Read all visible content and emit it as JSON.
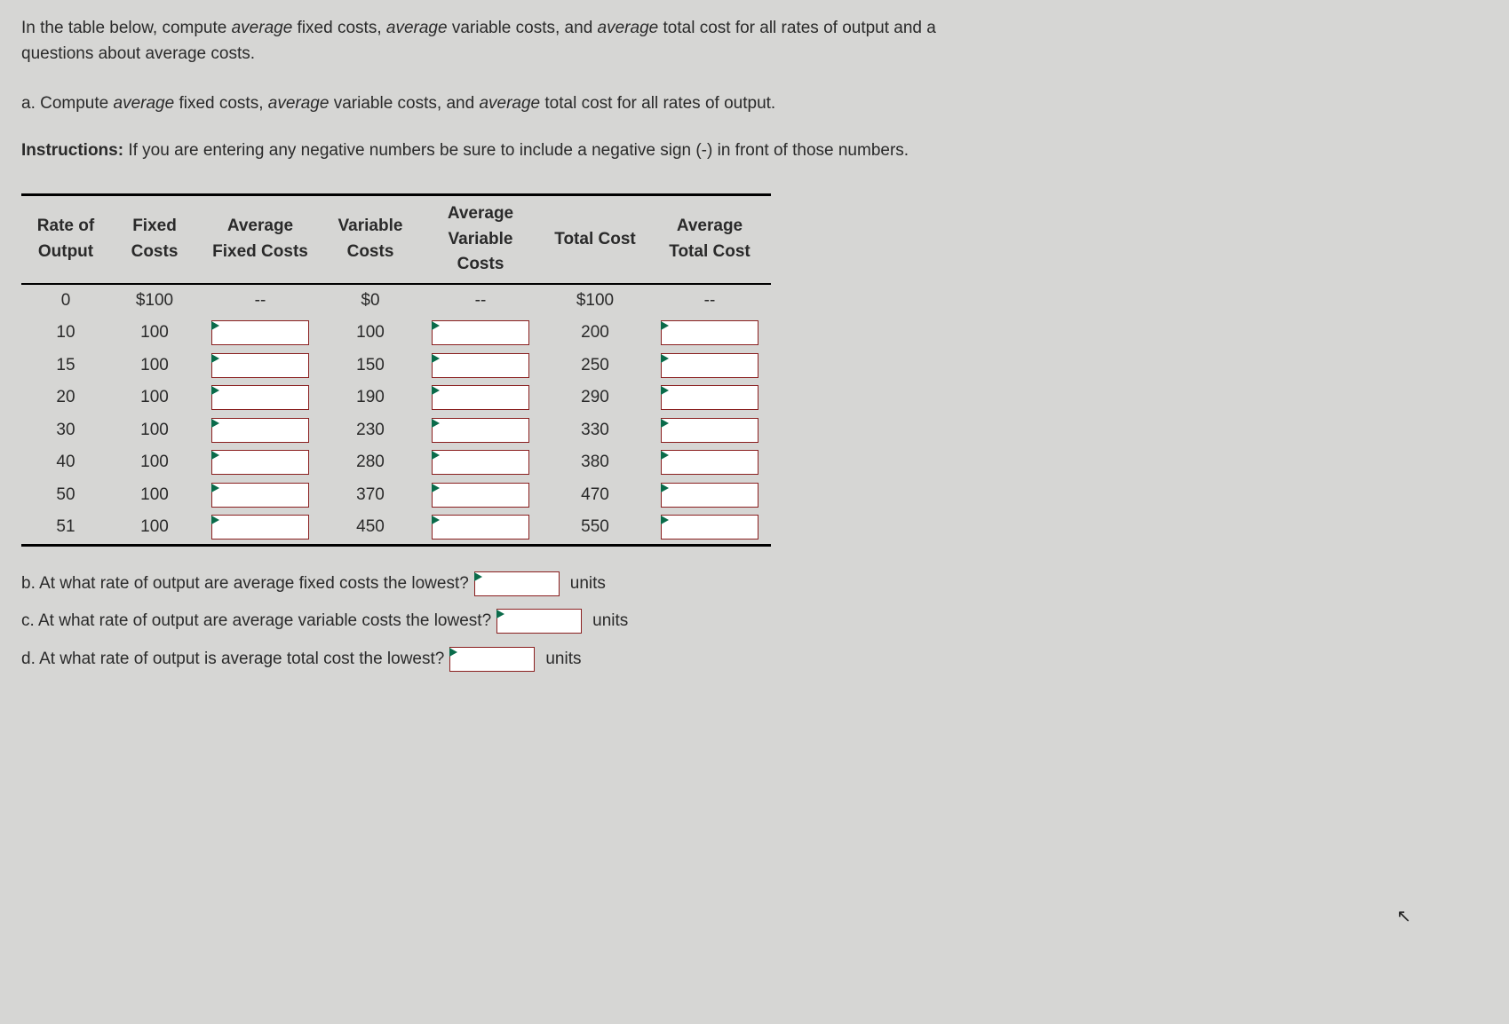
{
  "intro": "In the table below, compute average fixed costs, average variable costs, and average total cost for all rates of output and a questions about average costs.",
  "part_a_prefix": "a. Compute ",
  "part_a_mid1": "average",
  "part_a_mid2": " fixed costs, ",
  "part_a_mid3": "average",
  "part_a_mid4": " variable costs, and ",
  "part_a_mid5": "average",
  "part_a_mid6": " total cost for all rates of output.",
  "instr_label": "Instructions:",
  "instr_text": " If you are entering any negative numbers be sure to include a negative sign (-) in front of those numbers.",
  "headers": {
    "c0": "Rate of Output",
    "c1": "Fixed Costs",
    "c2": "Average Fixed Costs",
    "c3": "Variable Costs",
    "c4": "Average Variable Costs",
    "c5": "Total Cost",
    "c6": "Average Total Cost"
  },
  "rows": [
    {
      "rate": "0",
      "fc": "$100",
      "afc": "--",
      "vc": "$0",
      "avc": "--",
      "tc": "$100",
      "atc": "--",
      "inputs": false
    },
    {
      "rate": "10",
      "fc": "100",
      "afc": "",
      "vc": "100",
      "avc": "",
      "tc": "200",
      "atc": "",
      "inputs": true
    },
    {
      "rate": "15",
      "fc": "100",
      "afc": "",
      "vc": "150",
      "avc": "",
      "tc": "250",
      "atc": "",
      "inputs": true
    },
    {
      "rate": "20",
      "fc": "100",
      "afc": "",
      "vc": "190",
      "avc": "",
      "tc": "290",
      "atc": "",
      "inputs": true
    },
    {
      "rate": "30",
      "fc": "100",
      "afc": "",
      "vc": "230",
      "avc": "",
      "tc": "330",
      "atc": "",
      "inputs": true
    },
    {
      "rate": "40",
      "fc": "100",
      "afc": "",
      "vc": "280",
      "avc": "",
      "tc": "380",
      "atc": "",
      "inputs": true
    },
    {
      "rate": "50",
      "fc": "100",
      "afc": "",
      "vc": "370",
      "avc": "",
      "tc": "470",
      "atc": "",
      "inputs": true
    },
    {
      "rate": "51",
      "fc": "100",
      "afc": "",
      "vc": "450",
      "avc": "",
      "tc": "550",
      "atc": "",
      "inputs": true
    }
  ],
  "q_b": "b. At what rate of output are average fixed costs the lowest?",
  "q_c": "c. At what rate of output are average variable costs the lowest?",
  "q_d": "d. At what rate of output is average total cost the lowest?",
  "units": "units",
  "col_widths": {
    "c0": 100,
    "c1": 100,
    "c2": 130,
    "c3": 110,
    "c4": 130,
    "c5": 120,
    "c6": 130
  }
}
